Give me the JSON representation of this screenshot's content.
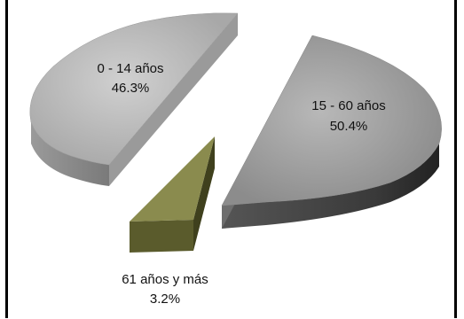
{
  "chart_data": {
    "type": "pie",
    "title": "",
    "slices": [
      {
        "label": "0 - 14 años",
        "value": 46.3,
        "value_label": "46.3%",
        "color": "#c2c2c2"
      },
      {
        "label": "15 - 60 años",
        "value": 50.4,
        "value_label": "50.4%",
        "color": "#a9a9a9"
      },
      {
        "label": "61 años y más",
        "value": 3.2,
        "value_label": "3.2%",
        "color": "#8a8b4e"
      }
    ],
    "exploded": true,
    "three_d": true,
    "legend": "none"
  }
}
